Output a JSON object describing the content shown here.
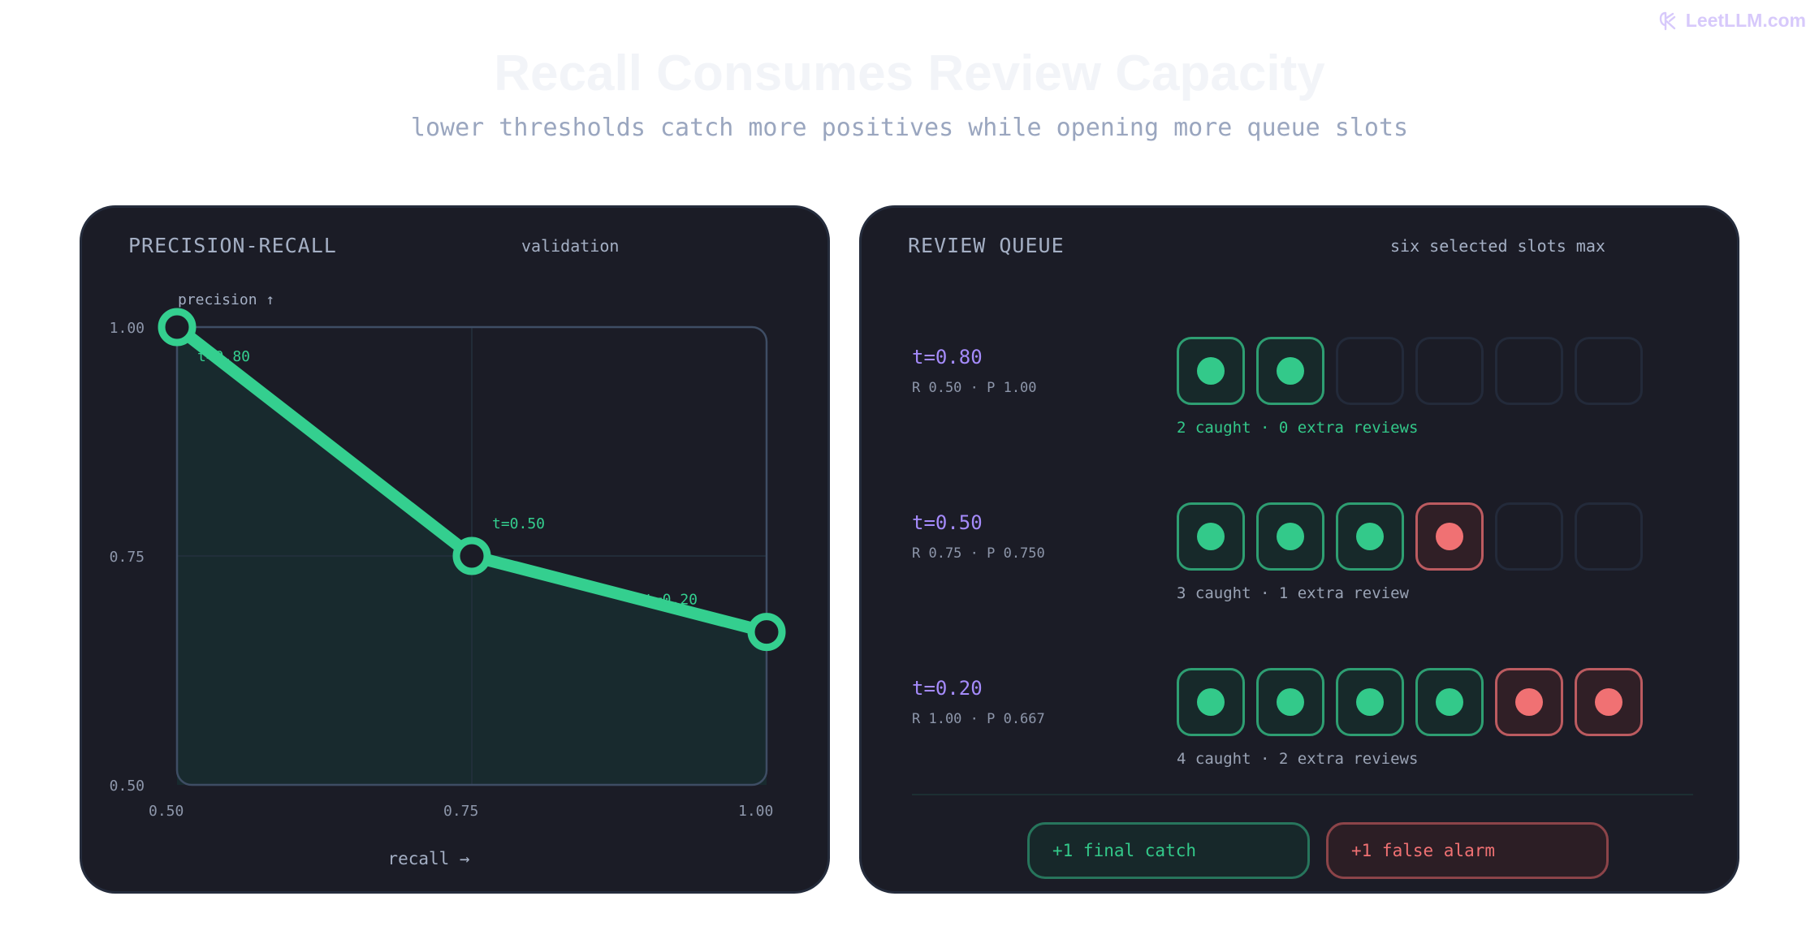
{
  "brand": {
    "text": "LeetLLM.com"
  },
  "header": {
    "title": "Recall Consumes Review Capacity",
    "subtitle": "lower thresholds catch more positives while opening more queue slots"
  },
  "left_panel": {
    "label": "PRECISION-RECALL",
    "note": "validation"
  },
  "right_panel": {
    "label": "REVIEW QUEUE",
    "note": "six selected slots max",
    "rows": [
      {
        "threshold": "t=0.80",
        "metrics": "R 0.50 · P 1.00",
        "slots": [
          "tp",
          "tp",
          "empty",
          "empty",
          "empty",
          "empty"
        ],
        "summary": "2 caught · 0 extra reviews",
        "summary_color": "#33c98a"
      },
      {
        "threshold": "t=0.50",
        "metrics": "R 0.75 · P 0.750",
        "slots": [
          "tp",
          "tp",
          "tp",
          "fp",
          "empty",
          "empty"
        ],
        "summary": "3 caught · 1 extra review",
        "summary_color": "#9aa3b5"
      },
      {
        "threshold": "t=0.20",
        "metrics": "R 1.00 · P 0.667",
        "slots": [
          "tp",
          "tp",
          "tp",
          "tp",
          "fp",
          "fp"
        ],
        "summary": "4 caught · 2 extra reviews",
        "summary_color": "#9aa3b5"
      }
    ],
    "legend": {
      "catch": "+1 final catch",
      "alarm": "+1 false alarm"
    }
  },
  "colors": {
    "line": "#34cf8f",
    "fill": "#182a2e",
    "frame": "#3e4d64",
    "tp": "#33c98a",
    "fp": "#f07173",
    "threshold_text": "#a58bfb"
  },
  "chart_data": {
    "type": "line",
    "title": "",
    "xlabel": "recall →",
    "ylabel": "precision ↑",
    "xlim": [
      0.5,
      1.0
    ],
    "ylim": [
      0.5,
      1.0
    ],
    "x_ticks": [
      "0.50",
      "0.75",
      "1.00"
    ],
    "y_ticks": [
      "1.00",
      "0.75",
      "0.50"
    ],
    "grid": true,
    "series": [
      {
        "x": [
          0.5,
          0.75,
          1.0
        ],
        "y": [
          1.0,
          0.75,
          0.667
        ],
        "labels": [
          "t=0.80",
          "t=0.50",
          "t=0.20"
        ]
      }
    ]
  }
}
